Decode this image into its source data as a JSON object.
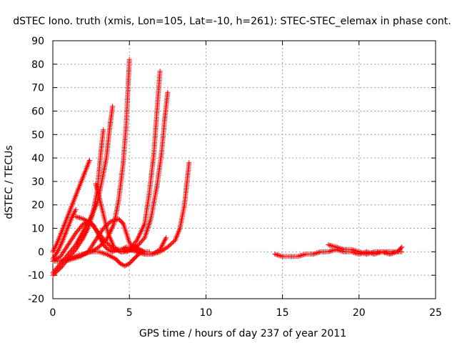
{
  "chart_data": {
    "type": "scatter",
    "title": "dSTEC Iono. truth (xmis, Lon=105, Lat=-10, h=261): STEC-STEC_elemax in phase cont.",
    "xlabel": "GPS time / hours of day 237 of year 2011",
    "ylabel": "dSTEC  / TECUs",
    "xlim": [
      0,
      25
    ],
    "ylim": [
      -20,
      90
    ],
    "xticks": [
      "0",
      "5",
      "10",
      "15",
      "20",
      "25"
    ],
    "yticks": [
      "-20",
      "-10",
      "0",
      "10",
      "20",
      "30",
      "40",
      "50",
      "60",
      "70",
      "80",
      "90"
    ],
    "grid": true,
    "marker": "+",
    "color": "#ff0000",
    "series": [
      {
        "x": [
          0.0,
          0.3,
          0.6,
          0.9,
          1.2,
          1.5,
          1.8,
          2.1,
          2.4
        ],
        "y": [
          0,
          4,
          9,
          14,
          19,
          24,
          29,
          34,
          39
        ]
      },
      {
        "x": [
          0.0,
          0.3,
          0.6,
          0.9,
          1.2,
          1.5
        ],
        "y": [
          -3,
          0,
          4,
          9,
          14,
          18
        ]
      },
      {
        "x": [
          0.0,
          0.5,
          1.0,
          1.5,
          2.0,
          2.3,
          2.6,
          2.9,
          3.1,
          3.3
        ],
        "y": [
          -10,
          -7,
          -3,
          1,
          6,
          10,
          16,
          26,
          40,
          52
        ]
      },
      {
        "x": [
          0.0,
          0.5,
          1.0,
          1.5,
          2.0,
          2.5,
          2.9,
          3.2,
          3.5,
          3.7,
          3.9
        ],
        "y": [
          -9,
          -5,
          -1,
          3,
          9,
          15,
          21,
          30,
          40,
          52,
          62
        ]
      },
      {
        "x": [
          0.0,
          0.5,
          1.0,
          1.5,
          2.0,
          2.5,
          3.0,
          3.5,
          4.0,
          4.3,
          4.6,
          4.8,
          5.0
        ],
        "y": [
          -4,
          -4,
          -3,
          -2,
          -1,
          0,
          2,
          5,
          12,
          22,
          38,
          55,
          82
        ]
      },
      {
        "x": [
          1.5,
          2.0,
          2.5,
          3.0,
          3.5,
          4.0,
          4.5,
          5.0,
          5.5,
          6.0,
          6.3,
          6.6,
          6.8,
          7.0
        ],
        "y": [
          15,
          14,
          12,
          8,
          4,
          1,
          0,
          1,
          5,
          12,
          25,
          42,
          60,
          77
        ]
      },
      {
        "x": [
          2.8,
          3.0,
          3.3,
          3.6,
          4.0,
          4.4,
          4.8,
          5.2,
          5.6,
          6.0,
          6.4,
          6.8,
          7.1,
          7.3,
          7.5
        ],
        "y": [
          29,
          24,
          16,
          8,
          2,
          0,
          0,
          1,
          3,
          6,
          14,
          28,
          42,
          56,
          68
        ]
      },
      {
        "x": [
          0.0,
          0.5,
          1.0,
          1.5,
          2.0,
          2.4,
          2.7,
          3.0,
          3.3,
          3.6,
          3.9,
          4.2,
          4.5,
          4.8,
          5.1,
          5.4,
          5.7,
          6.0,
          6.3
        ],
        "y": [
          -4,
          -2,
          3,
          8,
          12,
          13,
          11,
          7,
          3,
          1,
          0,
          1,
          1,
          2,
          2,
          2,
          1,
          0,
          0
        ]
      },
      {
        "x": [
          0.8,
          1.3,
          1.8,
          2.3,
          2.8,
          3.3,
          3.8,
          4.3,
          4.6,
          5.0,
          5.5,
          6.0,
          6.5,
          7.0,
          7.5,
          8.0,
          8.3,
          8.6,
          8.9
        ],
        "y": [
          -4,
          -3,
          -2,
          0,
          5,
          10,
          13,
          14,
          12,
          4,
          0,
          -1,
          -1,
          0,
          2,
          5,
          10,
          20,
          38
        ]
      },
      {
        "x": [
          1.5,
          2.0,
          2.5,
          3.0,
          3.5,
          3.8,
          4.1,
          4.4,
          4.7,
          5.0,
          5.3,
          5.6,
          5.9
        ],
        "y": [
          -2,
          -1,
          0,
          0,
          -1,
          -2,
          -3,
          -5,
          -6,
          -5,
          -3,
          -1,
          0
        ]
      },
      {
        "x": [
          4.5,
          5.0,
          5.5,
          6.0,
          6.5,
          7.0,
          7.4
        ],
        "y": [
          1,
          1,
          0,
          -1,
          -1,
          1,
          6
        ]
      },
      {
        "x": [
          14.5,
          15.0,
          15.5,
          16.0,
          16.5,
          17.0,
          17.5,
          18.0,
          18.5,
          19.0,
          19.5,
          20.0,
          20.5,
          21.0,
          21.5,
          22.0,
          22.5,
          22.8
        ],
        "y": [
          -1,
          -2,
          -2,
          -2,
          -1,
          -1,
          0,
          0,
          1,
          0,
          0,
          -1,
          0,
          -1,
          0,
          0,
          0,
          0
        ]
      },
      {
        "x": [
          18.0,
          18.5,
          19.0,
          19.5,
          20.0,
          20.5,
          21.0,
          21.5,
          22.0,
          22.5,
          22.8
        ],
        "y": [
          3,
          2,
          1,
          1,
          0,
          -1,
          0,
          0,
          -1,
          0,
          2
        ]
      }
    ]
  }
}
